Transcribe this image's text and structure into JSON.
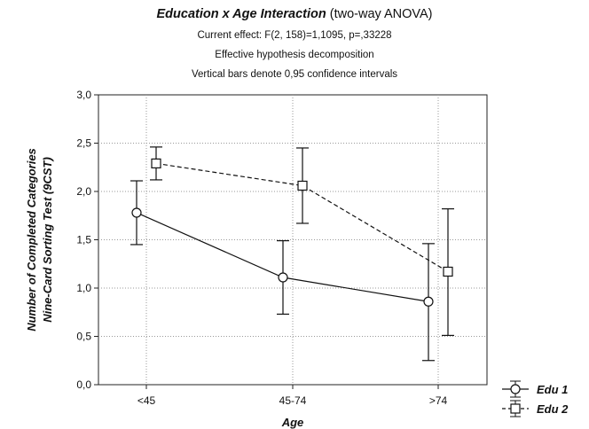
{
  "title": {
    "main": "Education x Age Interaction",
    "suffix": " (two-way ANOVA)",
    "line2": "Current effect: F(2, 158)=1,1095, p=,33228",
    "line3": "Effective hypothesis decomposition",
    "line4": "Vertical bars denote 0,95 confidence intervals"
  },
  "chart_data": {
    "type": "line",
    "xlabel": "Age",
    "ylabel_lines": [
      "Number of Completed Categories",
      "Nine-Card Sorting Test (9CST)"
    ],
    "categories": [
      "<45",
      "45-74",
      ">74"
    ],
    "ylim": [
      0,
      3
    ],
    "yticks": [
      "0,0",
      "0,5",
      "1,0",
      "1,5",
      "2,0",
      "2,5",
      "3,0"
    ],
    "grid": true,
    "legend_position": "bottom-right outside",
    "series": [
      {
        "name": "Edu 1",
        "marker": "circle",
        "line": "solid",
        "values": [
          1.78,
          1.11,
          0.86
        ],
        "ci_low": [
          1.45,
          0.73,
          0.25
        ],
        "ci_high": [
          2.11,
          1.49,
          1.46
        ]
      },
      {
        "name": "Edu 2",
        "marker": "square",
        "line": "dashed",
        "values": [
          2.29,
          2.06,
          1.17
        ],
        "ci_low": [
          2.12,
          1.67,
          0.51
        ],
        "ci_high": [
          2.46,
          2.45,
          1.82
        ]
      }
    ]
  }
}
